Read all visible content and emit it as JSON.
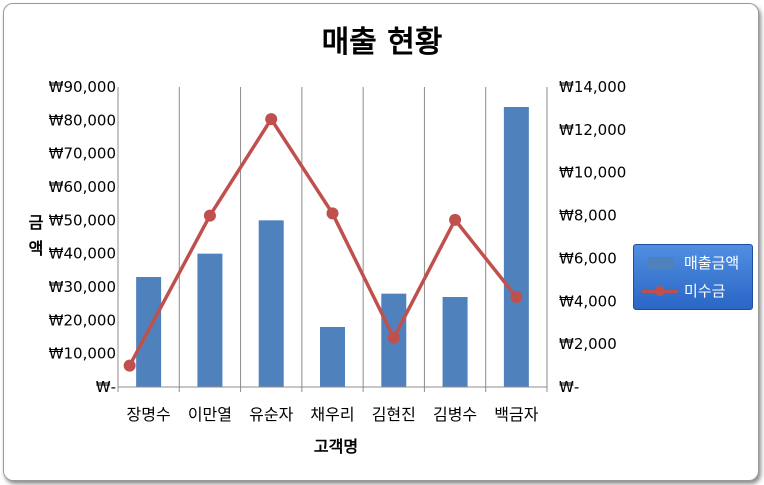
{
  "chart_data": {
    "type": "bar",
    "title": "매출 현황",
    "xlabel": "고객명",
    "ylabel": "금액",
    "categories": [
      "장명수",
      "이만열",
      "유순자",
      "채우리",
      "김현진",
      "김병수",
      "백금자"
    ],
    "series": [
      {
        "name": "매출금액",
        "type": "bar",
        "axis": "left",
        "color": "#4f81bd",
        "values": [
          33000,
          40000,
          50000,
          18000,
          28000,
          27000,
          84000
        ]
      },
      {
        "name": "미수금",
        "type": "line",
        "axis": "right",
        "color": "#c0504d",
        "values": [
          1000,
          8000,
          12500,
          8100,
          2300,
          7800,
          4200
        ]
      }
    ],
    "ylim_left": [
      0,
      90000
    ],
    "ylim_right": [
      0,
      14000
    ],
    "left_ticks": [
      "₩-",
      "₩10,000",
      "₩20,000",
      "₩30,000",
      "₩40,000",
      "₩50,000",
      "₩60,000",
      "₩70,000",
      "₩80,000",
      "₩90,000"
    ],
    "right_ticks": [
      "₩-",
      "₩2,000",
      "₩4,000",
      "₩6,000",
      "₩8,000",
      "₩10,000",
      "₩12,000",
      "₩14,000"
    ],
    "grid": "vertical",
    "legend_position": "right"
  }
}
